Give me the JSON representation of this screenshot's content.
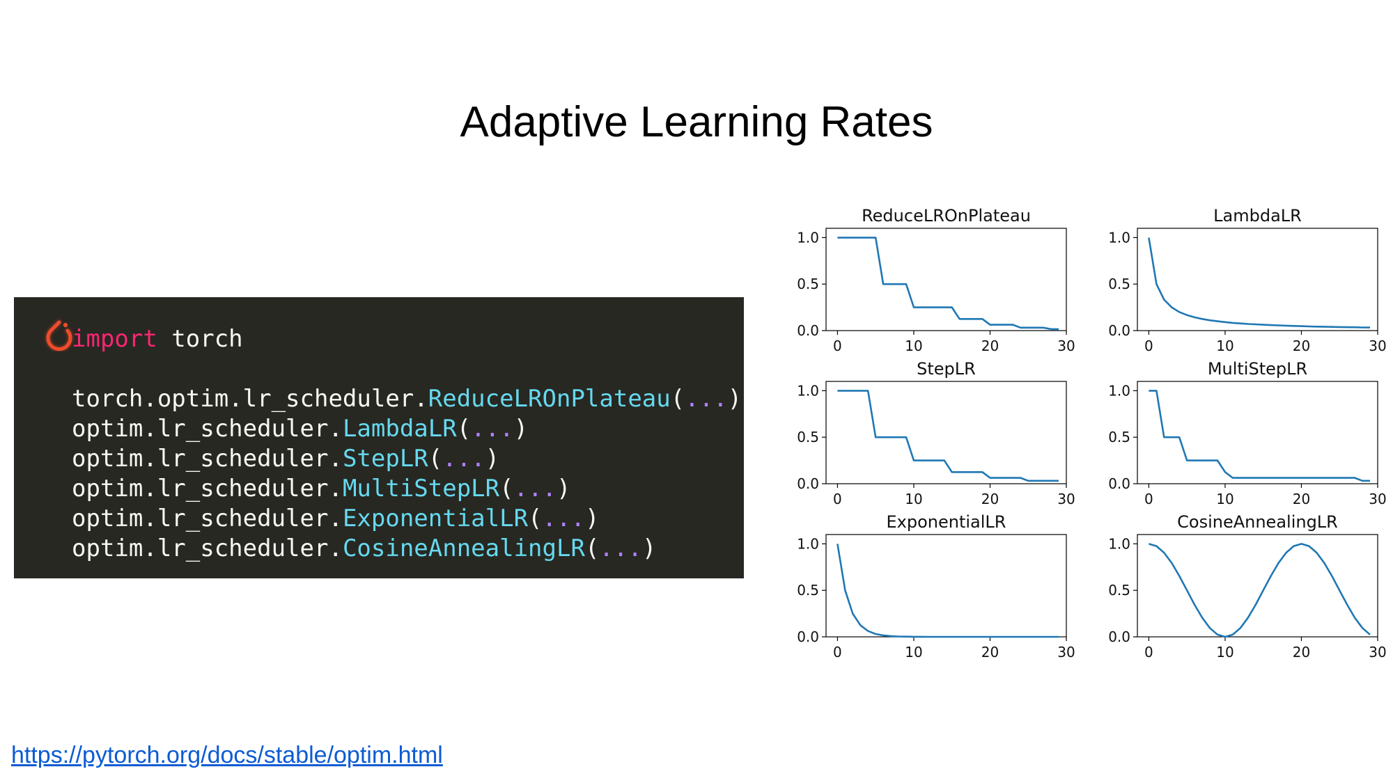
{
  "slide": {
    "title": "Adaptive Learning Rates",
    "link": "https://pytorch.org/docs/stable/optim.html"
  },
  "code": {
    "logo_icon": "pytorch-logo-icon",
    "colors": {
      "background": "#272822",
      "keyword": "#f92672",
      "function": "#66d9ef",
      "dots": "#ae81ff",
      "text": "#f8f8f2"
    },
    "lines": [
      {
        "keyword": "import",
        "rest": " torch"
      },
      {
        "prefix": "torch.optim.lr_scheduler.",
        "fn": "ReduceLROnPlateau",
        "open": "(",
        "dots": "...",
        "close": ")"
      },
      {
        "prefix": "optim.lr_scheduler.",
        "fn": "LambdaLR",
        "open": "(",
        "dots": "...",
        "close": ")"
      },
      {
        "prefix": "optim.lr_scheduler.",
        "fn": "StepLR",
        "open": "(",
        "dots": "...",
        "close": ")"
      },
      {
        "prefix": "optim.lr_scheduler.",
        "fn": "MultiStepLR",
        "open": "(",
        "dots": "...",
        "close": ")"
      },
      {
        "prefix": "optim.lr_scheduler.",
        "fn": "ExponentialLR",
        "open": "(",
        "dots": "...",
        "close": ")"
      },
      {
        "prefix": "optim.lr_scheduler.",
        "fn": "CosineAnnealingLR",
        "open": "(",
        "dots": "...",
        "close": ")"
      }
    ]
  },
  "chart_data": [
    {
      "type": "line",
      "title": "ReduceLROnPlateau",
      "xlim": [
        -1.5,
        30
      ],
      "ylim": [
        0,
        1.1
      ],
      "xticks": [
        "0",
        "10",
        "20",
        "30"
      ],
      "yticks": [
        "0.0",
        "0.5",
        "1.0"
      ],
      "color": "#1f77b4",
      "x": [
        0,
        1,
        2,
        3,
        4,
        5,
        6,
        7,
        8,
        9,
        10,
        11,
        12,
        13,
        14,
        15,
        16,
        17,
        18,
        19,
        20,
        21,
        22,
        23,
        24,
        25,
        26,
        27,
        28,
        29
      ],
      "y": [
        1,
        1,
        1,
        1,
        1,
        1,
        0.5,
        0.5,
        0.5,
        0.5,
        0.25,
        0.25,
        0.25,
        0.25,
        0.25,
        0.25,
        0.125,
        0.125,
        0.125,
        0.125,
        0.0625,
        0.0625,
        0.0625,
        0.0625,
        0.0312,
        0.0312,
        0.0312,
        0.0312,
        0.0156,
        0.0156
      ]
    },
    {
      "type": "line",
      "title": "LambdaLR",
      "xlim": [
        -1.5,
        30
      ],
      "ylim": [
        0,
        1.1
      ],
      "xticks": [
        "0",
        "10",
        "20",
        "30"
      ],
      "yticks": [
        "0.0",
        "0.5",
        "1.0"
      ],
      "color": "#1f77b4",
      "x": [
        0,
        1,
        2,
        3,
        4,
        5,
        6,
        7,
        8,
        9,
        10,
        11,
        12,
        13,
        14,
        15,
        16,
        17,
        18,
        19,
        20,
        21,
        22,
        23,
        24,
        25,
        26,
        27,
        28,
        29
      ],
      "y": [
        1.0,
        0.5,
        0.333,
        0.25,
        0.2,
        0.167,
        0.143,
        0.125,
        0.111,
        0.1,
        0.091,
        0.083,
        0.077,
        0.071,
        0.067,
        0.0625,
        0.059,
        0.056,
        0.053,
        0.05,
        0.048,
        0.045,
        0.043,
        0.042,
        0.04,
        0.038,
        0.037,
        0.036,
        0.034,
        0.033
      ]
    },
    {
      "type": "line",
      "title": "StepLR",
      "xlim": [
        -1.5,
        30
      ],
      "ylim": [
        0,
        1.1
      ],
      "xticks": [
        "0",
        "10",
        "20",
        "30"
      ],
      "yticks": [
        "0.0",
        "0.5",
        "1.0"
      ],
      "color": "#1f77b4",
      "x": [
        0,
        1,
        2,
        3,
        4,
        5,
        6,
        7,
        8,
        9,
        10,
        11,
        12,
        13,
        14,
        15,
        16,
        17,
        18,
        19,
        20,
        21,
        22,
        23,
        24,
        25,
        26,
        27,
        28,
        29
      ],
      "y": [
        1,
        1,
        1,
        1,
        1,
        0.5,
        0.5,
        0.5,
        0.5,
        0.5,
        0.25,
        0.25,
        0.25,
        0.25,
        0.25,
        0.125,
        0.125,
        0.125,
        0.125,
        0.125,
        0.0625,
        0.0625,
        0.0625,
        0.0625,
        0.0625,
        0.0312,
        0.0312,
        0.0312,
        0.0312,
        0.0312
      ]
    },
    {
      "type": "line",
      "title": "MultiStepLR",
      "xlim": [
        -1.5,
        30
      ],
      "ylim": [
        0,
        1.1
      ],
      "xticks": [
        "0",
        "10",
        "20",
        "30"
      ],
      "yticks": [
        "0.0",
        "0.5",
        "1.0"
      ],
      "color": "#1f77b4",
      "x": [
        0,
        1,
        2,
        3,
        4,
        5,
        6,
        7,
        8,
        9,
        10,
        11,
        12,
        13,
        14,
        15,
        16,
        17,
        18,
        19,
        20,
        21,
        22,
        23,
        24,
        25,
        26,
        27,
        28,
        29
      ],
      "y": [
        1,
        1,
        0.5,
        0.5,
        0.5,
        0.25,
        0.25,
        0.25,
        0.25,
        0.25,
        0.125,
        0.0625,
        0.0625,
        0.0625,
        0.0625,
        0.0625,
        0.0625,
        0.0625,
        0.0625,
        0.0625,
        0.0625,
        0.0625,
        0.0625,
        0.0625,
        0.0625,
        0.0625,
        0.0625,
        0.0625,
        0.03125,
        0.03125
      ]
    },
    {
      "type": "line",
      "title": "ExponentialLR",
      "xlim": [
        -1.5,
        30
      ],
      "ylim": [
        0,
        1.1
      ],
      "xticks": [
        "0",
        "10",
        "20",
        "30"
      ],
      "yticks": [
        "0.0",
        "0.5",
        "1.0"
      ],
      "color": "#1f77b4",
      "x": [
        0,
        1,
        2,
        3,
        4,
        5,
        6,
        7,
        8,
        9,
        10,
        11,
        12,
        13,
        14,
        15,
        16,
        17,
        18,
        19,
        20,
        21,
        22,
        23,
        24,
        25,
        26,
        27,
        28,
        29
      ],
      "y": [
        1.0,
        0.5,
        0.25,
        0.125,
        0.0625,
        0.031,
        0.016,
        0.008,
        0.004,
        0.002,
        0.001,
        0.0005,
        0.0002,
        0.0001,
        0,
        0,
        0,
        0,
        0,
        0,
        0,
        0,
        0,
        0,
        0,
        0,
        0,
        0,
        0,
        0
      ]
    },
    {
      "type": "line",
      "title": "CosineAnnealingLR",
      "xlim": [
        -1.5,
        30
      ],
      "ylim": [
        0,
        1.1
      ],
      "xticks": [
        "0",
        "10",
        "20",
        "30"
      ],
      "yticks": [
        "0.0",
        "0.5",
        "1.0"
      ],
      "color": "#1f77b4",
      "x": [
        0,
        1,
        2,
        3,
        4,
        5,
        6,
        7,
        8,
        9,
        10,
        11,
        12,
        13,
        14,
        15,
        16,
        17,
        18,
        19,
        20,
        21,
        22,
        23,
        24,
        25,
        26,
        27,
        28,
        29
      ],
      "y": [
        1.0,
        0.976,
        0.905,
        0.794,
        0.655,
        0.5,
        0.345,
        0.206,
        0.095,
        0.024,
        0.0,
        0.024,
        0.095,
        0.206,
        0.345,
        0.5,
        0.655,
        0.794,
        0.905,
        0.976,
        1.0,
        0.976,
        0.905,
        0.794,
        0.655,
        0.5,
        0.345,
        0.206,
        0.095,
        0.024
      ]
    }
  ]
}
